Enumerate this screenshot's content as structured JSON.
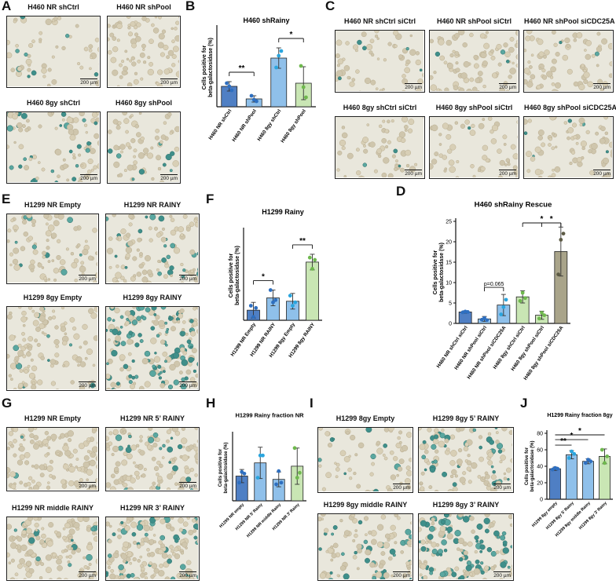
{
  "panels": {
    "A": {
      "letter": "A",
      "images": [
        "H460 NR shCtrl",
        "H460 NR shPool",
        "H460 8gy shCtrl",
        "H460 8gy shPool"
      ]
    },
    "C": {
      "letter": "C",
      "images": [
        "H460 NR shCtrl siCtrl",
        "H460 NR shPool siCtrl",
        "H460 NR shPool siCDC25A",
        "H460 8gy shCtrl siCtrl",
        "H460 8gy shPool siCtrl",
        "H460 8gy shPool siCDC25A"
      ]
    },
    "E": {
      "letter": "E",
      "images": [
        "H1299 NR Empty",
        "H1299 NR RAINY",
        "H1299 8gy Empty",
        "H1299 8gy RAINY"
      ]
    },
    "G": {
      "letter": "G",
      "images": [
        "H1299 NR Empty",
        "H1299 NR 5’ RAINY",
        "H1299 NR middle RAINY",
        "H1299 NR 3’ RAINY"
      ]
    },
    "I": {
      "letter": "I",
      "images": [
        "H1299 8gy Empty",
        "H1299 8gy 5’ RAINY",
        "H1299 8gy middle RAINY",
        "H1299 8gy 3’ RAINY"
      ]
    }
  },
  "scale_bar": "200 µm",
  "colors": {
    "blue_dark": "#4f7fc4",
    "blue_light": "#8fc0ea",
    "green_light": "#c9e6b4",
    "green_dark": "#a9a48a",
    "dot_blue": "#2e6fc0",
    "dot_cyan": "#2aa5de",
    "dot_green": "#6fb84e",
    "dot_olive": "#5c5a44"
  },
  "chart_data": [
    {
      "panel": "B",
      "type": "bar",
      "title": "H460 shRainy",
      "ylabel": "Cells positive for beta-galactosidase (%)",
      "categories": [
        "H460 NR shCtrl",
        "H460 NR shPool",
        "H460 8gy shCtrl",
        "H460 8gy shPool"
      ],
      "values": [
        2.6,
        1.0,
        6.2,
        3.0
      ],
      "errors": [
        0.6,
        0.4,
        1.3,
        2.1
      ],
      "points": [
        [
          3.0,
          2.6,
          2.1
        ],
        [
          1.4,
          0.9,
          0.7
        ],
        [
          5.0,
          6.5,
          7.1
        ],
        [
          5.2,
          2.5,
          1.2
        ]
      ],
      "ylim": [
        0,
        10
      ],
      "yticks": [],
      "bar_colors": [
        "blue_dark",
        "blue_light",
        "blue_light",
        "green_light"
      ],
      "dot_colors": [
        "dot_blue",
        "dot_blue",
        "dot_cyan",
        "dot_green"
      ],
      "significance": [
        {
          "from": 0,
          "to": 1,
          "label": "**"
        },
        {
          "from": 2,
          "to": 3,
          "label": "*"
        }
      ]
    },
    {
      "panel": "D",
      "type": "bar",
      "title": "H460 shRainy Rescue",
      "ylabel": "Cells positive for beta-galactosidase (%)",
      "categories": [
        "H460 NR shCtrl siCtrl",
        "H460 NR shPool siCtrl",
        "H460 NR shPool siCDC25A",
        "H460 8gy shCtrl siCtrl",
        "H460 8gy shPool siCtrl",
        "H460 8gy shPool siCDC25A"
      ],
      "values": [
        2.8,
        1.1,
        4.5,
        6.5,
        2.0,
        17.6
      ],
      "errors": [
        0.3,
        0.6,
        2.6,
        1.5,
        1.0,
        6.0
      ],
      "points": [
        [
          2.7,
          2.9,
          2.8
        ],
        [
          0.9,
          1.3,
          0.8
        ],
        [
          2.2,
          4.0,
          5.8
        ],
        [
          5.5,
          7.5,
          6.2
        ],
        [
          1.2,
          2.6,
          2.0
        ],
        [
          12.0,
          20.5,
          22.0
        ]
      ],
      "ylim": [
        0,
        25
      ],
      "yticks": [
        0,
        5,
        10,
        15,
        20,
        25
      ],
      "bar_colors": [
        "blue_dark",
        "blue_light",
        "blue_light",
        "green_light",
        "green_light",
        "green_dark"
      ],
      "dot_colors": [
        "dot_blue",
        "dot_blue",
        "dot_cyan",
        "dot_green",
        "dot_green",
        "dot_olive"
      ],
      "significance": [
        {
          "from": 1,
          "to": 2,
          "label": "p=0.065"
        },
        {
          "from": 4,
          "to": 5,
          "label": "*"
        },
        {
          "from": 3,
          "to": 5,
          "label": "*"
        }
      ]
    },
    {
      "panel": "F",
      "type": "bar",
      "title": "H1299 Rainy",
      "ylabel": "Cells positive for beta-galactosidase (%)",
      "categories": [
        "H1299 NR Empty",
        "H1299 NR RAINY",
        "H1299 8gy Empty",
        "H1299 8gy RAINY"
      ],
      "values": [
        9,
        20,
        17,
        52
      ],
      "errors": [
        7,
        7,
        7,
        7
      ],
      "points": [
        [
          13,
          3,
          11
        ],
        [
          27,
          16,
          18
        ],
        [
          22,
          13,
          16
        ],
        [
          56,
          46,
          54
        ]
      ],
      "ylim": [
        0,
        80
      ],
      "yticks": [],
      "bar_colors": [
        "blue_dark",
        "blue_light",
        "blue_light",
        "green_light"
      ],
      "dot_colors": [
        "dot_blue",
        "dot_blue",
        "dot_cyan",
        "dot_green"
      ],
      "significance": [
        {
          "from": 0,
          "to": 1,
          "label": "*"
        },
        {
          "from": 2,
          "to": 3,
          "label": "**"
        }
      ]
    },
    {
      "panel": "H",
      "type": "bar",
      "title": "H1299 Rainy fraction NR",
      "ylabel": "Cells positive for beta-galactosidase (%)",
      "categories": [
        "H1299 NR empty",
        "H1299 NR 5’ Rainy",
        "H1299 NR middle Rainy",
        "H1299 NR 3’ Rainy"
      ],
      "values": [
        30,
        46,
        26,
        42
      ],
      "errors": [
        8,
        19,
        9,
        22
      ],
      "points": [
        [
          22,
          35,
          33
        ],
        [
          28,
          55,
          55
        ],
        [
          20,
          36,
          22
        ],
        [
          64,
          28,
          34
        ]
      ],
      "ylim": [
        0,
        80
      ],
      "yticks": [],
      "bar_colors": [
        "blue_dark",
        "blue_light",
        "blue_light",
        "green_light"
      ],
      "dot_colors": [
        "dot_blue",
        "dot_cyan",
        "dot_blue",
        "dot_green"
      ],
      "significance": []
    },
    {
      "panel": "J",
      "type": "bar",
      "title": "H1299 Rainy fraction 8gy",
      "ylabel": "Cells positive for beta-galactosidase (%)",
      "categories": [
        "H1299 8gy empty",
        "H1299 8gy 5’ Rainy",
        "H1299 8gy middle Rainy",
        "H1299 8gy 3’ Rainy"
      ],
      "values": [
        37,
        54,
        46,
        52
      ],
      "errors": [
        2,
        5,
        3,
        9
      ],
      "points": [
        [
          36,
          38,
          37
        ],
        [
          50,
          58,
          55
        ],
        [
          44,
          48,
          46
        ],
        [
          60,
          44,
          52
        ]
      ],
      "ylim": [
        0,
        80
      ],
      "yticks": [
        0,
        20,
        40,
        60,
        80
      ],
      "bar_colors": [
        "blue_dark",
        "blue_light",
        "blue_light",
        "green_light"
      ],
      "dot_colors": [
        "dot_blue",
        "dot_cyan",
        "dot_blue",
        "dot_green"
      ],
      "significance": [
        {
          "from": 0,
          "to": 1,
          "label": "**"
        },
        {
          "from": 0,
          "to": 2,
          "label": "*"
        },
        {
          "from": 0,
          "to": 3,
          "label": "*"
        }
      ]
    }
  ]
}
